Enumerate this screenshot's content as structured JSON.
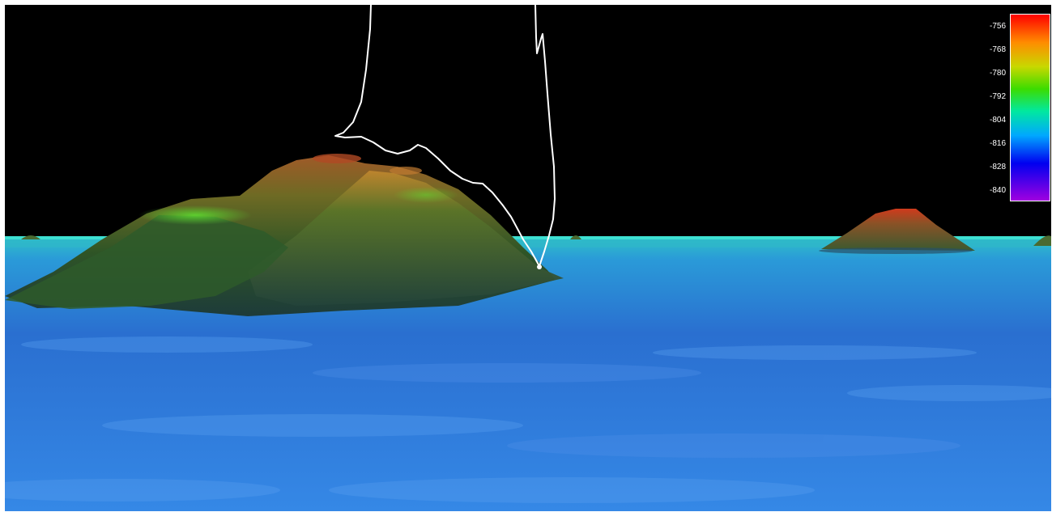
{
  "viewer": {
    "colors": {
      "sky": "#000000",
      "seafloor_near": "#2f7fe0",
      "seafloor_far": "#2aa8c8",
      "horizon": "#38e0d0",
      "ridge_low": "#2a4a20",
      "ridge_mid": "#5a6a20",
      "ridge_high": "#c04020",
      "track": "#ffffff"
    }
  },
  "colorbar": {
    "ticks": [
      "-756",
      "-768",
      "-780",
      "-792",
      "-804",
      "-816",
      "-828",
      "-840"
    ],
    "colors": [
      "#ff0000",
      "#ff8c00",
      "#c8d800",
      "#3cdc00",
      "#00e8a0",
      "#00a8ff",
      "#0000f0",
      "#a000e0"
    ]
  }
}
